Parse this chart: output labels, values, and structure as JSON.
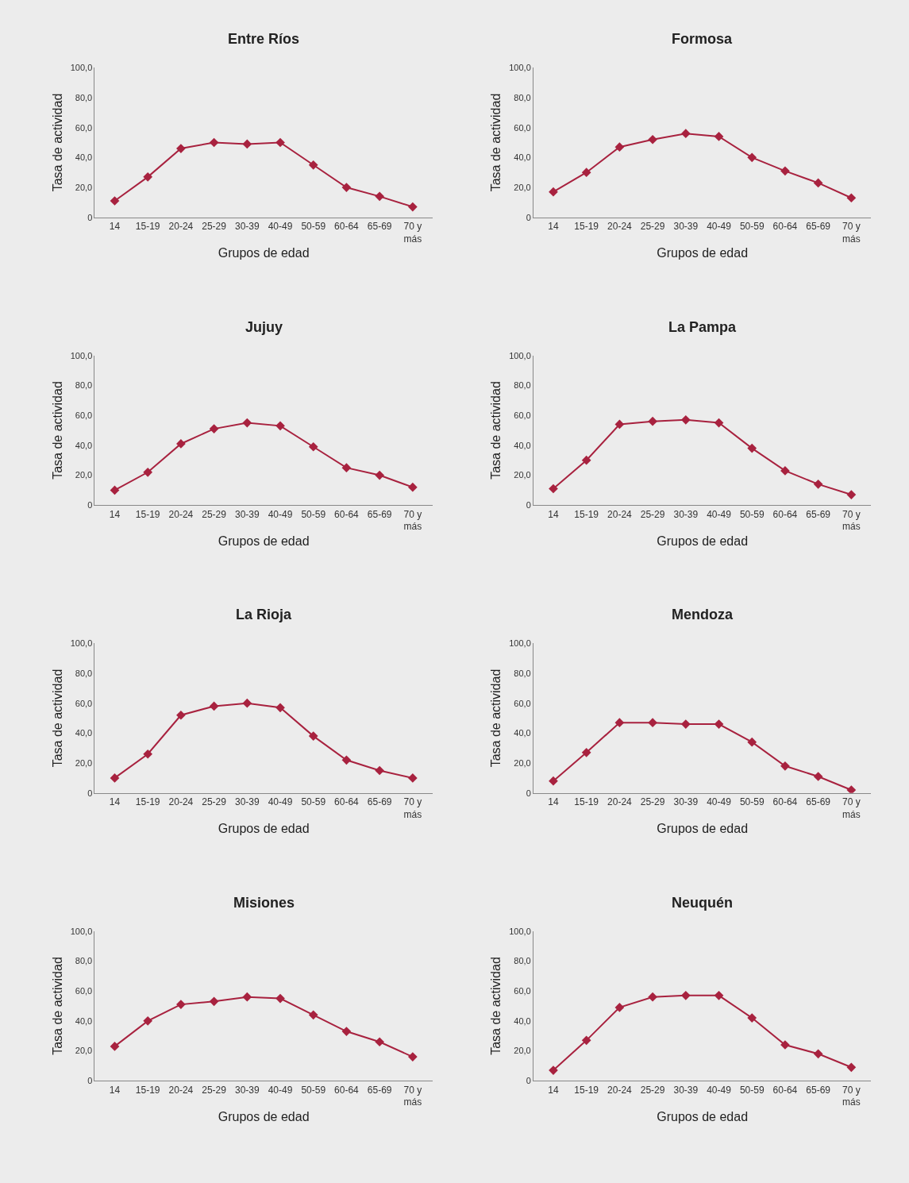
{
  "chart_data": [
    {
      "type": "line",
      "title": "Entre Ríos",
      "xlabel": "Grupos de edad",
      "ylabel": "Tasa de actividad",
      "categories": [
        "14",
        "15-19",
        "20-24",
        "25-29",
        "30-39",
        "40-49",
        "50-59",
        "60-64",
        "65-69",
        "70 y\nmás"
      ],
      "series": [
        {
          "color": "#a8223f",
          "values": [
            11,
            27,
            46,
            50,
            49,
            50,
            35,
            20,
            14,
            7
          ]
        }
      ],
      "ylim": [
        0,
        100
      ],
      "yticks": [
        0,
        {
          "value": 20,
          "label": "20,0"
        },
        {
          "value": 40,
          "label": "40,0"
        },
        {
          "value": 60,
          "label": "60,0"
        },
        {
          "value": 80,
          "label": "80,0"
        },
        {
          "value": 100,
          "label": "100,0"
        }
      ],
      "marker": "diamond",
      "grid": false
    },
    {
      "type": "line",
      "title": "Formosa",
      "xlabel": "Grupos de edad",
      "ylabel": "Tasa de actividad",
      "categories": [
        "14",
        "15-19",
        "20-24",
        "25-29",
        "30-39",
        "40-49",
        "50-59",
        "60-64",
        "65-69",
        "70 y\nmás"
      ],
      "series": [
        {
          "color": "#a8223f",
          "values": [
            17,
            30,
            47,
            52,
            56,
            54,
            40,
            31,
            23,
            13
          ]
        }
      ],
      "ylim": [
        0,
        100
      ],
      "yticks": [
        0,
        {
          "value": 20,
          "label": "20,0"
        },
        {
          "value": 40,
          "label": "40,0"
        },
        {
          "value": 60,
          "label": "60,0"
        },
        {
          "value": 80,
          "label": "80,0"
        },
        {
          "value": 100,
          "label": "100,0"
        }
      ],
      "marker": "diamond",
      "grid": false
    },
    {
      "type": "line",
      "title": "Jujuy",
      "xlabel": "Grupos de edad",
      "ylabel": "Tasa de actividad",
      "categories": [
        "14",
        "15-19",
        "20-24",
        "25-29",
        "30-39",
        "40-49",
        "50-59",
        "60-64",
        "65-69",
        "70 y\nmás"
      ],
      "series": [
        {
          "color": "#a8223f",
          "values": [
            10,
            22,
            41,
            51,
            55,
            53,
            39,
            25,
            20,
            12
          ]
        }
      ],
      "ylim": [
        0,
        100
      ],
      "yticks": [
        0,
        {
          "value": 20,
          "label": "20,0"
        },
        {
          "value": 40,
          "label": "40,0"
        },
        {
          "value": 60,
          "label": "60,0"
        },
        {
          "value": 80,
          "label": "80,0"
        },
        {
          "value": 100,
          "label": "100,0"
        }
      ],
      "marker": "diamond",
      "grid": false
    },
    {
      "type": "line",
      "title": "La Pampa",
      "xlabel": "Grupos de edad",
      "ylabel": "Tasa de actividad",
      "categories": [
        "14",
        "15-19",
        "20-24",
        "25-29",
        "30-39",
        "40-49",
        "50-59",
        "60-64",
        "65-69",
        "70 y\nmás"
      ],
      "series": [
        {
          "color": "#a8223f",
          "values": [
            11,
            30,
            54,
            56,
            57,
            55,
            38,
            23,
            14,
            7
          ]
        }
      ],
      "ylim": [
        0,
        100
      ],
      "yticks": [
        0,
        {
          "value": 20,
          "label": "20,0"
        },
        {
          "value": 40,
          "label": "40,0"
        },
        {
          "value": 60,
          "label": "60,0"
        },
        {
          "value": 80,
          "label": "80,0"
        },
        {
          "value": 100,
          "label": "100,0"
        }
      ],
      "marker": "diamond",
      "grid": false
    },
    {
      "type": "line",
      "title": "La Rioja",
      "xlabel": "Grupos de edad",
      "ylabel": "Tasa de actividad",
      "categories": [
        "14",
        "15-19",
        "20-24",
        "25-29",
        "30-39",
        "40-49",
        "50-59",
        "60-64",
        "65-69",
        "70 y\nmás"
      ],
      "series": [
        {
          "color": "#a8223f",
          "values": [
            10,
            26,
            52,
            58,
            60,
            57,
            38,
            22,
            15,
            10
          ]
        }
      ],
      "ylim": [
        0,
        100
      ],
      "yticks": [
        0,
        {
          "value": 20,
          "label": "20,0"
        },
        {
          "value": 40,
          "label": "40,0"
        },
        {
          "value": 60,
          "label": "60,0"
        },
        {
          "value": 80,
          "label": "80,0"
        },
        {
          "value": 100,
          "label": "100,0"
        }
      ],
      "marker": "diamond",
      "grid": false
    },
    {
      "type": "line",
      "title": "Mendoza",
      "xlabel": "Grupos de edad",
      "ylabel": "Tasa de actividad",
      "categories": [
        "14",
        "15-19",
        "20-24",
        "25-29",
        "30-39",
        "40-49",
        "50-59",
        "60-64",
        "65-69",
        "70 y\nmás"
      ],
      "series": [
        {
          "color": "#a8223f",
          "values": [
            8,
            27,
            47,
            47,
            46,
            46,
            34,
            18,
            11,
            2
          ]
        }
      ],
      "ylim": [
        0,
        100
      ],
      "yticks": [
        0,
        {
          "value": 20,
          "label": "20,0"
        },
        {
          "value": 40,
          "label": "40,0"
        },
        {
          "value": 60,
          "label": "60,0"
        },
        {
          "value": 80,
          "label": "80,0"
        },
        {
          "value": 100,
          "label": "100,0"
        }
      ],
      "marker": "diamond",
      "grid": false
    },
    {
      "type": "line",
      "title": "Misiones",
      "xlabel": "Grupos de edad",
      "ylabel": "Tasa de actividad",
      "categories": [
        "14",
        "15-19",
        "20-24",
        "25-29",
        "30-39",
        "40-49",
        "50-59",
        "60-64",
        "65-69",
        "70 y\nmás"
      ],
      "series": [
        {
          "color": "#a8223f",
          "values": [
            23,
            40,
            51,
            53,
            56,
            55,
            44,
            33,
            26,
            16
          ]
        }
      ],
      "ylim": [
        0,
        100
      ],
      "yticks": [
        0,
        {
          "value": 20,
          "label": "20,0"
        },
        {
          "value": 40,
          "label": "40,0"
        },
        {
          "value": 60,
          "label": "60,0"
        },
        {
          "value": 80,
          "label": "80,0"
        },
        {
          "value": 100,
          "label": "100,0"
        }
      ],
      "marker": "diamond",
      "grid": false
    },
    {
      "type": "line",
      "title": "Neuquén",
      "xlabel": "Grupos de edad",
      "ylabel": "Tasa de actividad",
      "categories": [
        "14",
        "15-19",
        "20-24",
        "25-29",
        "30-39",
        "40-49",
        "50-59",
        "60-64",
        "65-69",
        "70 y\nmás"
      ],
      "series": [
        {
          "color": "#a8223f",
          "values": [
            7,
            27,
            49,
            56,
            57,
            57,
            42,
            24,
            18,
            9
          ]
        }
      ],
      "ylim": [
        0,
        100
      ],
      "yticks": [
        0,
        {
          "value": 20,
          "label": "20,0"
        },
        {
          "value": 40,
          "label": "40,0"
        },
        {
          "value": 60,
          "label": "60,0"
        },
        {
          "value": 80,
          "label": "80,0"
        },
        {
          "value": 100,
          "label": "100,0"
        }
      ],
      "marker": "diamond",
      "grid": false
    }
  ]
}
